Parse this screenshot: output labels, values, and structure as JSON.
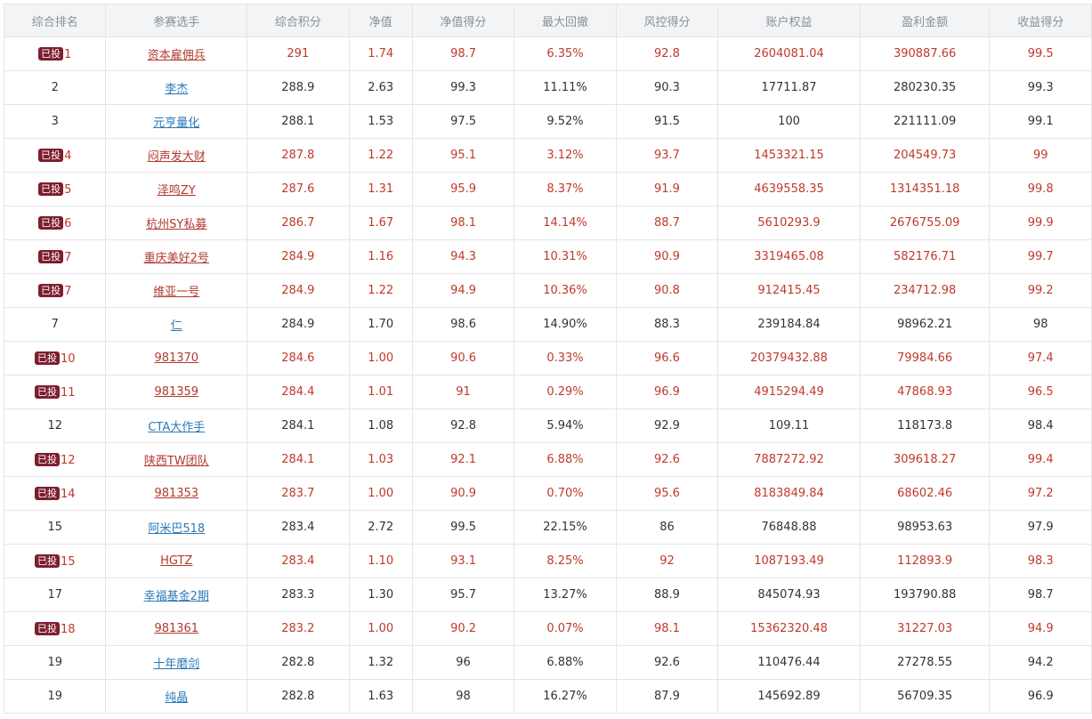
{
  "table": {
    "headers": [
      "综合排名",
      "参赛选手",
      "综合积分",
      "净值",
      "净值得分",
      "最大回撤",
      "风控得分",
      "账户权益",
      "盈利金额",
      "收益得分"
    ],
    "badge_label": "已投",
    "rows": [
      {
        "invested": true,
        "rank": "1",
        "player": "资本雇佣兵",
        "score": "291",
        "nav": "1.74",
        "nav_score": "98.7",
        "max_dd": "6.35%",
        "risk_score": "92.8",
        "equity": "2604081.04",
        "profit": "390887.66",
        "return_score": "99.5"
      },
      {
        "invested": false,
        "rank": "2",
        "player": "李杰",
        "score": "288.9",
        "nav": "2.63",
        "nav_score": "99.3",
        "max_dd": "11.11%",
        "risk_score": "90.3",
        "equity": "17711.87",
        "profit": "280230.35",
        "return_score": "99.3"
      },
      {
        "invested": false,
        "rank": "3",
        "player": "元亨量化",
        "score": "288.1",
        "nav": "1.53",
        "nav_score": "97.5",
        "max_dd": "9.52%",
        "risk_score": "91.5",
        "equity": "100",
        "profit": "221111.09",
        "return_score": "99.1"
      },
      {
        "invested": true,
        "rank": "4",
        "player": "闷声发大财",
        "score": "287.8",
        "nav": "1.22",
        "nav_score": "95.1",
        "max_dd": "3.12%",
        "risk_score": "93.7",
        "equity": "1453321.15",
        "profit": "204549.73",
        "return_score": "99"
      },
      {
        "invested": true,
        "rank": "5",
        "player": "泽鸣ZY",
        "score": "287.6",
        "nav": "1.31",
        "nav_score": "95.9",
        "max_dd": "8.37%",
        "risk_score": "91.9",
        "equity": "4639558.35",
        "profit": "1314351.18",
        "return_score": "99.8"
      },
      {
        "invested": true,
        "rank": "6",
        "player": "杭州SY私募",
        "score": "286.7",
        "nav": "1.67",
        "nav_score": "98.1",
        "max_dd": "14.14%",
        "risk_score": "88.7",
        "equity": "5610293.9",
        "profit": "2676755.09",
        "return_score": "99.9"
      },
      {
        "invested": true,
        "rank": "7",
        "player": "重庆美好2号",
        "score": "284.9",
        "nav": "1.16",
        "nav_score": "94.3",
        "max_dd": "10.31%",
        "risk_score": "90.9",
        "equity": "3319465.08",
        "profit": "582176.71",
        "return_score": "99.7"
      },
      {
        "invested": true,
        "rank": "7",
        "player": "维亚一号",
        "score": "284.9",
        "nav": "1.22",
        "nav_score": "94.9",
        "max_dd": "10.36%",
        "risk_score": "90.8",
        "equity": "912415.45",
        "profit": "234712.98",
        "return_score": "99.2"
      },
      {
        "invested": false,
        "rank": "7",
        "player": "仁",
        "score": "284.9",
        "nav": "1.70",
        "nav_score": "98.6",
        "max_dd": "14.90%",
        "risk_score": "88.3",
        "equity": "239184.84",
        "profit": "98962.21",
        "return_score": "98"
      },
      {
        "invested": true,
        "rank": "10",
        "player": "981370",
        "score": "284.6",
        "nav": "1.00",
        "nav_score": "90.6",
        "max_dd": "0.33%",
        "risk_score": "96.6",
        "equity": "20379432.88",
        "profit": "79984.66",
        "return_score": "97.4"
      },
      {
        "invested": true,
        "rank": "11",
        "player": "981359",
        "score": "284.4",
        "nav": "1.01",
        "nav_score": "91",
        "max_dd": "0.29%",
        "risk_score": "96.9",
        "equity": "4915294.49",
        "profit": "47868.93",
        "return_score": "96.5"
      },
      {
        "invested": false,
        "rank": "12",
        "player": "CTA大作手",
        "score": "284.1",
        "nav": "1.08",
        "nav_score": "92.8",
        "max_dd": "5.94%",
        "risk_score": "92.9",
        "equity": "109.11",
        "profit": "118173.8",
        "return_score": "98.4"
      },
      {
        "invested": true,
        "rank": "12",
        "player": "陕西TW团队",
        "score": "284.1",
        "nav": "1.03",
        "nav_score": "92.1",
        "max_dd": "6.88%",
        "risk_score": "92.6",
        "equity": "7887272.92",
        "profit": "309618.27",
        "return_score": "99.4"
      },
      {
        "invested": true,
        "rank": "14",
        "player": "981353",
        "score": "283.7",
        "nav": "1.00",
        "nav_score": "90.9",
        "max_dd": "0.70%",
        "risk_score": "95.6",
        "equity": "8183849.84",
        "profit": "68602.46",
        "return_score": "97.2"
      },
      {
        "invested": false,
        "rank": "15",
        "player": "阿米巴518",
        "score": "283.4",
        "nav": "2.72",
        "nav_score": "99.5",
        "max_dd": "22.15%",
        "risk_score": "86",
        "equity": "76848.88",
        "profit": "98953.63",
        "return_score": "97.9"
      },
      {
        "invested": true,
        "rank": "15",
        "player": "HGTZ",
        "score": "283.4",
        "nav": "1.10",
        "nav_score": "93.1",
        "max_dd": "8.25%",
        "risk_score": "92",
        "equity": "1087193.49",
        "profit": "112893.9",
        "return_score": "98.3"
      },
      {
        "invested": false,
        "rank": "17",
        "player": "幸福基金2期",
        "score": "283.3",
        "nav": "1.30",
        "nav_score": "95.7",
        "max_dd": "13.27%",
        "risk_score": "88.9",
        "equity": "845074.93",
        "profit": "193790.88",
        "return_score": "98.7"
      },
      {
        "invested": true,
        "rank": "18",
        "player": "981361",
        "score": "283.2",
        "nav": "1.00",
        "nav_score": "90.2",
        "max_dd": "0.07%",
        "risk_score": "98.1",
        "equity": "15362320.48",
        "profit": "31227.03",
        "return_score": "94.9"
      },
      {
        "invested": false,
        "rank": "19",
        "player": "十年磨剑",
        "score": "282.8",
        "nav": "1.32",
        "nav_score": "96",
        "max_dd": "6.88%",
        "risk_score": "92.6",
        "equity": "110476.44",
        "profit": "27278.55",
        "return_score": "94.2"
      },
      {
        "invested": false,
        "rank": "19",
        "player": "纯晶",
        "score": "282.8",
        "nav": "1.63",
        "nav_score": "98",
        "max_dd": "16.27%",
        "risk_score": "87.9",
        "equity": "145692.89",
        "profit": "56709.35",
        "return_score": "96.9"
      }
    ]
  },
  "colors": {
    "invested_text": "#c0392b",
    "invested_badge_bg": "#7d1d2e",
    "link_blue": "#2c7ab8",
    "header_bg": "#f2f4f6",
    "header_text": "#8a8f99",
    "border": "#e5e5e5"
  }
}
